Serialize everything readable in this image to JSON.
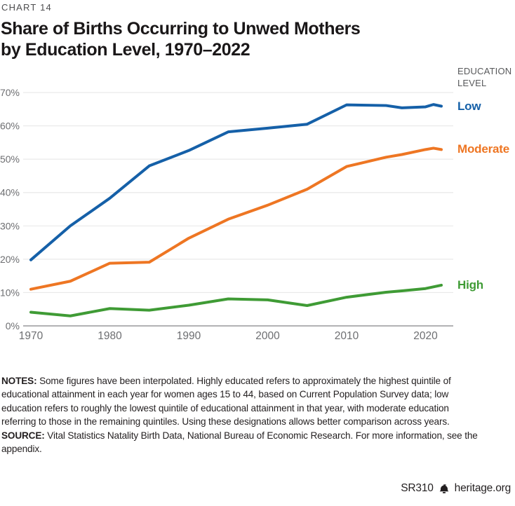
{
  "header": {
    "kicker": "CHART 14",
    "title_line1": "Share of Births Occurring to Unwed Mothers",
    "title_line2": "by Education Level, 1970–2022"
  },
  "legend": {
    "title_line1": "EDUCATION",
    "title_line2": "LEVEL",
    "items": [
      {
        "label": "Low",
        "color": "#1560a8"
      },
      {
        "label": "Moderate",
        "color": "#ee7623"
      },
      {
        "label": "High",
        "color": "#3f9b35"
      }
    ]
  },
  "chart_data": {
    "type": "line",
    "title": "Share of Births Occurring to Unwed Mothers by Education Level, 1970–2022",
    "xlabel": "",
    "ylabel": "",
    "xlim": [
      1970,
      2022
    ],
    "ylim": [
      0,
      70
    ],
    "grid": true,
    "legend_position": "right",
    "x": [
      1970,
      1975,
      1980,
      1985,
      1990,
      1995,
      2000,
      2005,
      2010,
      2015,
      2017,
      2020,
      2021,
      2022
    ],
    "series": [
      {
        "name": "Low",
        "color": "#1560a8",
        "values": [
          19.8,
          30.0,
          38.3,
          48.0,
          52.6,
          58.2,
          59.3,
          60.5,
          66.3,
          66.1,
          65.4,
          65.7,
          66.4,
          65.9
        ]
      },
      {
        "name": "Moderate",
        "color": "#ee7623",
        "values": [
          11.0,
          13.4,
          18.8,
          19.1,
          26.3,
          32.0,
          36.2,
          41.0,
          47.8,
          50.6,
          51.4,
          52.9,
          53.3,
          52.9
        ]
      },
      {
        "name": "High",
        "color": "#3f9b35",
        "values": [
          4.1,
          3.0,
          5.2,
          4.7,
          6.2,
          8.1,
          7.8,
          6.1,
          8.6,
          10.1,
          10.5,
          11.2,
          11.7,
          12.2
        ]
      }
    ],
    "y_ticks": [
      {
        "v": 0,
        "label": "0%"
      },
      {
        "v": 10,
        "label": "10%"
      },
      {
        "v": 20,
        "label": "20%"
      },
      {
        "v": 30,
        "label": "30%"
      },
      {
        "v": 40,
        "label": "40%"
      },
      {
        "v": 50,
        "label": "50%"
      },
      {
        "v": 60,
        "label": "60%"
      },
      {
        "v": 70,
        "label": "70%"
      }
    ],
    "x_ticks": [
      {
        "v": 1970,
        "label": "1970"
      },
      {
        "v": 1980,
        "label": "1980"
      },
      {
        "v": 1990,
        "label": "1990"
      },
      {
        "v": 2000,
        "label": "2000"
      },
      {
        "v": 2010,
        "label": "2010"
      },
      {
        "v": 2020,
        "label": "2020"
      }
    ]
  },
  "notes": {
    "label": "NOTES:",
    "text": "Some figures have been interpolated. Highly educated refers to approximately the highest quintile of\neducational attainment in each year for women ages 15 to 44, based on Current Population Survey data; low\neducation refers to roughly the lowest quintile of educational attainment in that year, with moderate education\nreferring to those in the remaining quintiles. Using these designations allows better comparison across years."
  },
  "source": {
    "label": "SOURCE:",
    "text": "Vital Statistics Natality Birth Data, National Bureau of Economic Research. For more information, see the\nappendix."
  },
  "footer": {
    "report_id": "SR310",
    "site": "heritage.org"
  },
  "colors": {
    "grid": "#e9e9e9",
    "axis": "#98989c",
    "tick_text": "#6d6e71"
  }
}
